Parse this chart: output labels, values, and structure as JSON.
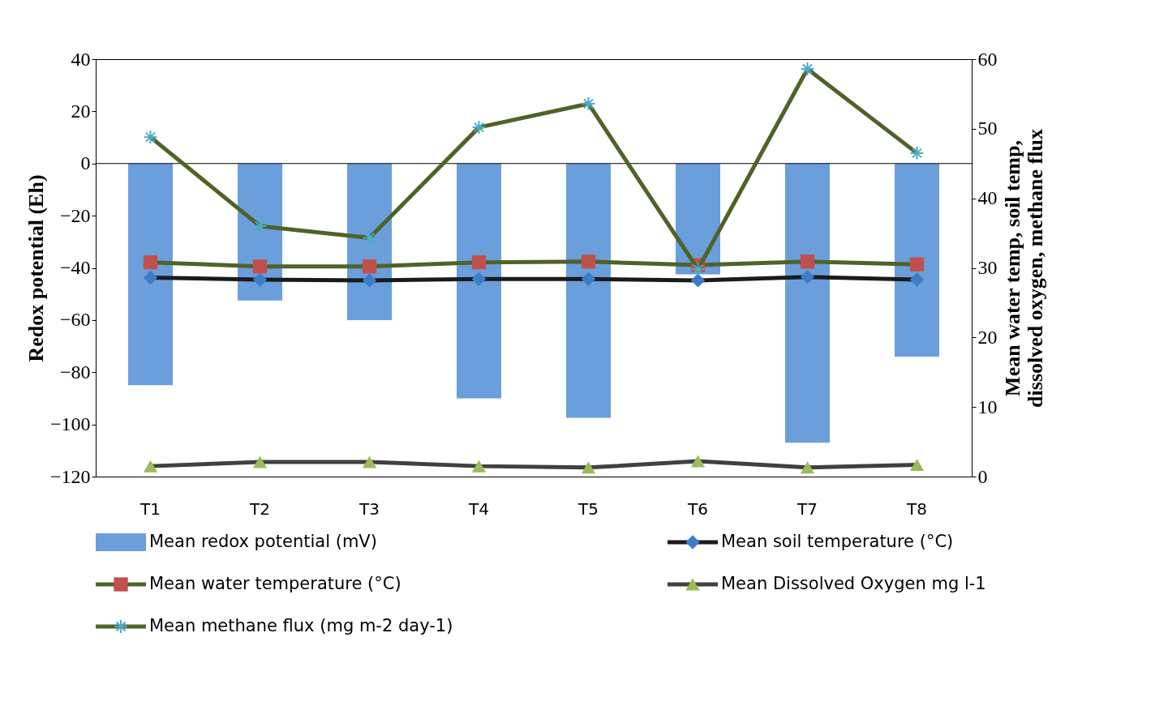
{
  "chart_data": {
    "type": "bar",
    "categories": [
      "T1",
      "T2",
      "T3",
      "T4",
      "T5",
      "T6",
      "T7",
      "T8"
    ],
    "ylabel": "Redox potential (Eh)",
    "y2label": [
      "Mean water temp,  soil temp,",
      "dissolved oxygen, methane flux"
    ],
    "ylim": [
      -120,
      40
    ],
    "yticks": [
      -120,
      -100,
      -80,
      -60,
      -40,
      -20,
      0,
      20,
      40
    ],
    "y2lim": [
      0,
      60
    ],
    "y2ticks": [
      0,
      10,
      20,
      30,
      40,
      50,
      60
    ],
    "legend": "bottom",
    "grid": false,
    "ref_lines": [
      {
        "axis": "y",
        "value": 0,
        "color": "#000000"
      }
    ],
    "series": [
      {
        "name": "Mean redox potential (mV)",
        "color": "#6a9fdc",
        "values": [
          -85,
          -52.5,
          -60,
          -90,
          -97.5,
          -42.5,
          -107,
          -74
        ]
      },
      {
        "name": "Mean soil temperature (°C)",
        "type": "line",
        "axis": "y2",
        "color": "#1a1a1a",
        "marker": "diamond",
        "colors": [
          "#3d7cc9",
          "#3d7cc9",
          "#3d7cc9",
          "#3d7cc9",
          "#3d7cc9",
          "#3d7cc9",
          "#3d7cc9",
          "#3d7cc9"
        ],
        "values": [
          28.6,
          28.3,
          28.2,
          28.4,
          28.4,
          28.2,
          28.7,
          28.3
        ]
      },
      {
        "name": "Mean water temperature (°C)",
        "type": "line",
        "axis": "y2",
        "color": "#4f6228",
        "marker": "square",
        "colors": [
          "#c0504d",
          "#c0504d",
          "#c0504d",
          "#c0504d",
          "#c0504d",
          "#c0504d",
          "#c0504d",
          "#c0504d"
        ],
        "values": [
          30.8,
          30.2,
          30.2,
          30.8,
          30.9,
          30.4,
          30.9,
          30.5
        ]
      },
      {
        "name": "Mean Dissolved Oxygen mg l-1",
        "type": "line",
        "axis": "y2",
        "color": "#404040",
        "marker": "triangle",
        "colors": [
          "#9bbb59",
          "#9bbb59",
          "#9bbb59",
          "#9bbb59",
          "#9bbb59",
          "#9bbb59",
          "#9bbb59",
          "#9bbb59"
        ],
        "values": [
          1.5,
          2.1,
          2.1,
          1.5,
          1.3,
          2.2,
          1.3,
          1.7
        ]
      },
      {
        "name": "Mean methane flux (mg m-2 day-1)",
        "type": "line",
        "axis": "y2",
        "color": "#4f6228",
        "marker": "cross",
        "colors": [
          "#4bacc6",
          "#4bacc6",
          "#4bacc6",
          "#4bacc6",
          "#4bacc6",
          "#4bacc6",
          "#4bacc6",
          "#4bacc6"
        ],
        "values": [
          48.8,
          36.0,
          34.3,
          50.2,
          53.6,
          29.8,
          58.6,
          46.5
        ]
      }
    ]
  }
}
